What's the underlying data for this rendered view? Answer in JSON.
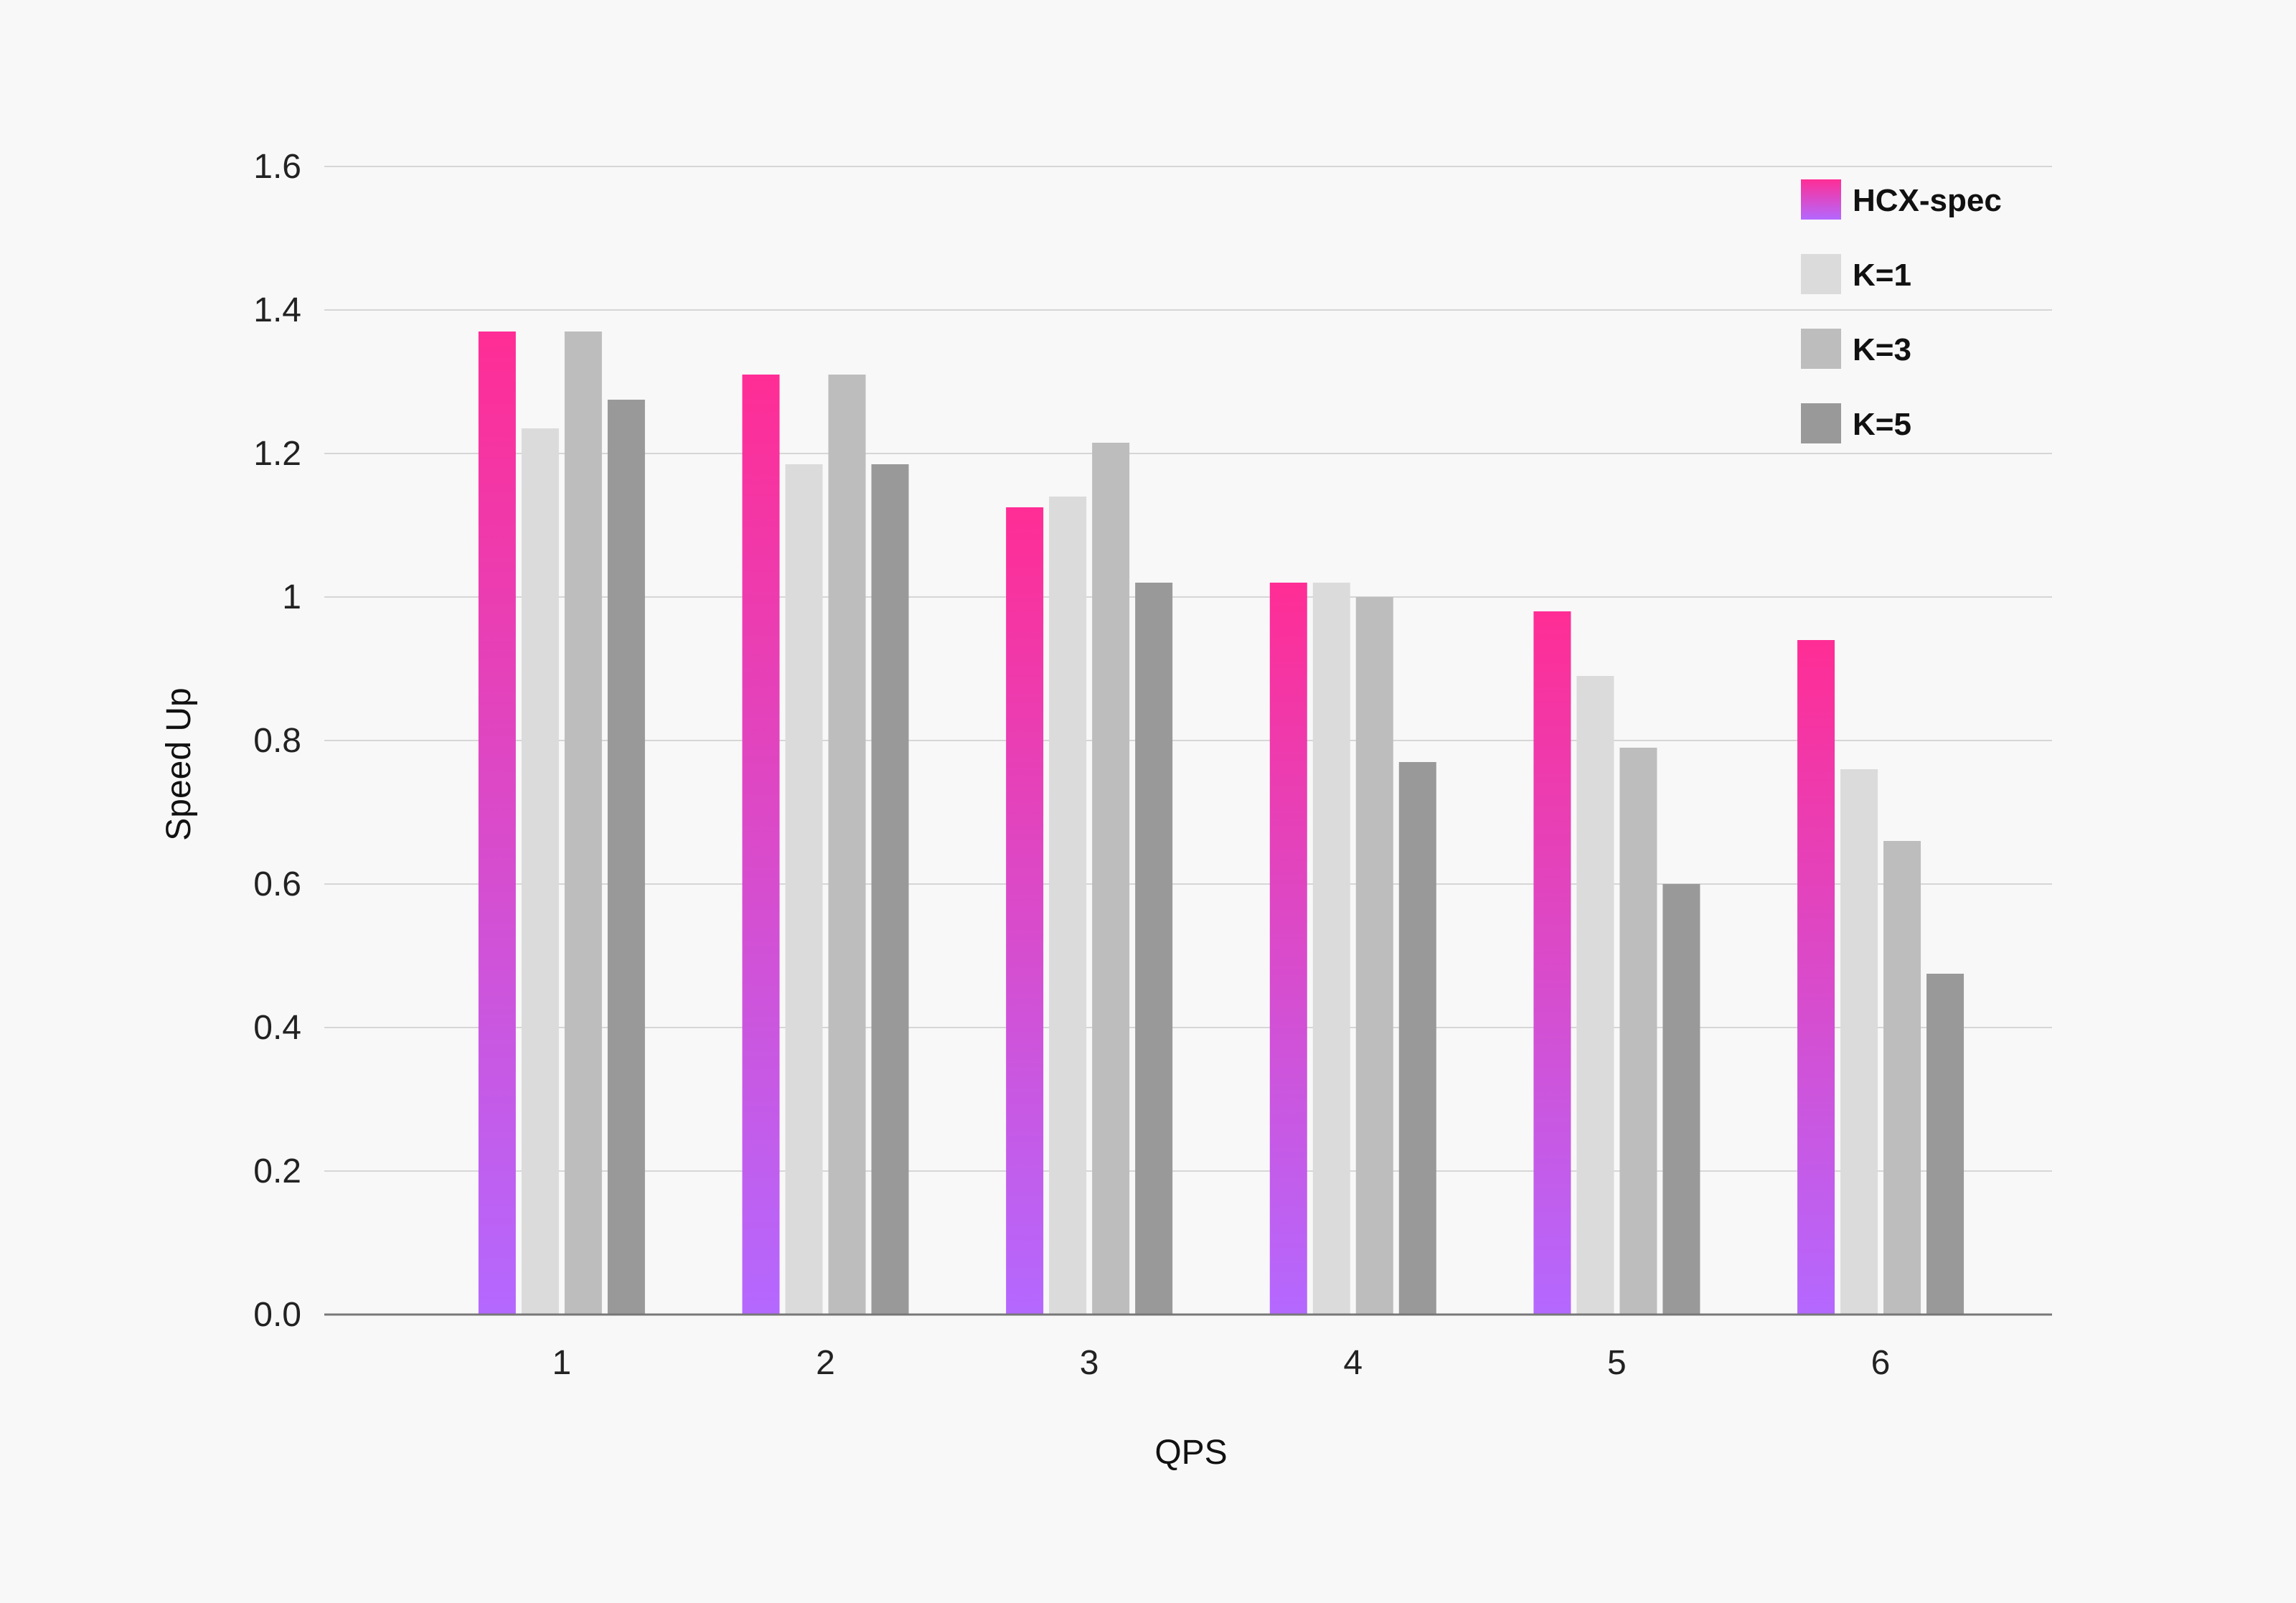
{
  "chart_data": {
    "type": "bar",
    "title": "",
    "xlabel": "QPS",
    "ylabel": "Speed Up",
    "categories": [
      "1",
      "2",
      "3",
      "4",
      "5",
      "6"
    ],
    "ylim": [
      0,
      1.6
    ],
    "yticks": [
      "0.0",
      "0.2",
      "0.4",
      "0.6",
      "0.8",
      "1",
      "1.2",
      "1.4",
      "1.6"
    ],
    "grid": true,
    "legend_position": "top-right",
    "series": [
      {
        "name": "HCX-spec",
        "values": [
          1.37,
          1.31,
          1.125,
          1.02,
          0.98,
          0.94
        ],
        "color_top": "#ff2d95",
        "color_bottom": "#b468ff"
      },
      {
        "name": "K=1",
        "values": [
          1.235,
          1.185,
          1.14,
          1.02,
          0.89,
          0.76
        ],
        "color": "#dbdbdb"
      },
      {
        "name": "K=3",
        "values": [
          1.37,
          1.31,
          1.215,
          1.0,
          0.79,
          0.66
        ],
        "color": "#bdbdbd"
      },
      {
        "name": "K=5",
        "values": [
          1.275,
          1.185,
          1.02,
          0.77,
          0.6,
          0.475
        ],
        "color": "#999999"
      }
    ]
  }
}
